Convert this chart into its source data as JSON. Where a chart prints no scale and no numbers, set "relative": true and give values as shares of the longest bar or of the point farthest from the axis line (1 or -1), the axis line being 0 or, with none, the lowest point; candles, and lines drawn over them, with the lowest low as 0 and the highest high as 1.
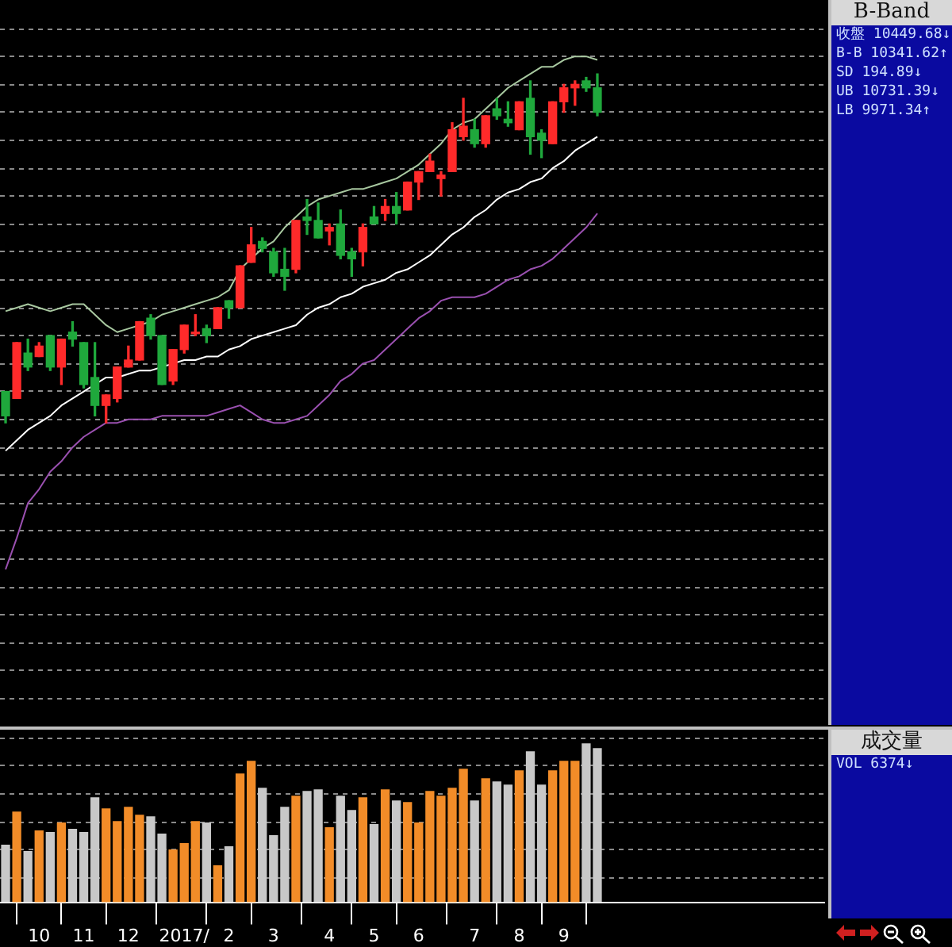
{
  "chart_data": [
    {
      "type": "candlestick",
      "relative": true,
      "grid": "y",
      "annotations": [
        "B-Band",
        "收盤 10449.68↓",
        "B-B 10341.62↑",
        "SD 194.89↓",
        "UB 10731.39↓",
        "LB 9971.34↑"
      ],
      "ohlc": [
        [
          0.09,
          0.09,
          0,
          0.02
        ],
        [
          0.07,
          0.23,
          0.07,
          0.23
        ],
        [
          0.2,
          0.24,
          0.15,
          0.16
        ],
        [
          0.19,
          0.23,
          0.19,
          0.22
        ],
        [
          0.25,
          0.25,
          0.15,
          0.16
        ],
        [
          0.16,
          0.24,
          0.11,
          0.24
        ],
        [
          0.26,
          0.29,
          0.22,
          0.24
        ],
        [
          0.23,
          0.23,
          0.1,
          0.11
        ],
        [
          0.13,
          0.23,
          0.02,
          0.05
        ],
        [
          0.05,
          0.08,
          0,
          0.08
        ],
        [
          0.07,
          0.16,
          0.06,
          0.16
        ],
        [
          0.16,
          0.22,
          0.16,
          0.18
        ],
        [
          0.18,
          0.29,
          0.18,
          0.29
        ],
        [
          0.3,
          0.31,
          0.24,
          0.25
        ],
        [
          0.25,
          0.25,
          0.11,
          0.11
        ],
        [
          0.12,
          0.21,
          0.11,
          0.21
        ],
        [
          0.21,
          0.28,
          0.2,
          0.28
        ],
        [
          0.26,
          0.31,
          0.25,
          0.26
        ],
        [
          0.27,
          0.28,
          0.23,
          0.25
        ],
        [
          0.27,
          0.33,
          0.27,
          0.33
        ],
        [
          0.35,
          0.35,
          0.3,
          0.33
        ],
        [
          0.33,
          0.45,
          0.33,
          0.45
        ],
        [
          0.46,
          0.56,
          0.46,
          0.51
        ],
        [
          0.52,
          0.53,
          0.49,
          0.5
        ],
        [
          0.49,
          0.5,
          0.42,
          0.43
        ],
        [
          0.44,
          0.5,
          0.38,
          0.42
        ],
        [
          0.44,
          0.58,
          0.43,
          0.58
        ],
        [
          0.59,
          0.64,
          0.54,
          0.58
        ],
        [
          0.58,
          0.63,
          0.53,
          0.53
        ],
        [
          0.55,
          0.57,
          0.51,
          0.56
        ],
        [
          0.57,
          0.61,
          0.47,
          0.48
        ],
        [
          0.49,
          0.5,
          0.42,
          0.47
        ],
        [
          0.49,
          0.57,
          0.45,
          0.56
        ],
        [
          0.59,
          0.62,
          0.57,
          0.57
        ],
        [
          0.6,
          0.64,
          0.58,
          0.62
        ],
        [
          0.62,
          0.66,
          0.57,
          0.6
        ],
        [
          0.61,
          0.69,
          0.61,
          0.69
        ],
        [
          0.69,
          0.72,
          0.64,
          0.72
        ],
        [
          0.72,
          0.77,
          0.72,
          0.75
        ],
        [
          0.7,
          0.72,
          0.65,
          0.71
        ],
        [
          0.72,
          0.86,
          0.72,
          0.84
        ],
        [
          0.82,
          0.93,
          0.81,
          0.85
        ],
        [
          0.84,
          0.87,
          0.79,
          0.8
        ],
        [
          0.8,
          0.88,
          0.79,
          0.88
        ],
        [
          0.9,
          0.93,
          0.87,
          0.88
        ],
        [
          0.87,
          0.92,
          0.85,
          0.86
        ],
        [
          0.84,
          0.92,
          0.84,
          0.92
        ],
        [
          0.93,
          0.98,
          0.77,
          0.82
        ],
        [
          0.83,
          0.84,
          0.76,
          0.81
        ],
        [
          0.8,
          0.92,
          0.8,
          0.92
        ],
        [
          0.92,
          0.97,
          0.89,
          0.96
        ],
        [
          0.96,
          0.98,
          0.91,
          0.97
        ],
        [
          0.98,
          0.99,
          0.95,
          0.96
        ],
        [
          0.96,
          1,
          0.88,
          0.89
        ]
      ],
      "colors": [
        "#1fa83c",
        "#ff2a2a",
        "#1fa83c",
        "#ff2a2a",
        "#1fa83c",
        "#ff2a2a",
        "#1fa83c",
        "#1fa83c",
        "#1fa83c",
        "#ff2a2a",
        "#ff2a2a",
        "#ff2a2a",
        "#ff2a2a",
        "#1fa83c",
        "#1fa83c",
        "#ff2a2a",
        "#ff2a2a",
        "#ff2a2a",
        "#1fa83c",
        "#ff2a2a",
        "#1fa83c",
        "#ff2a2a",
        "#ff2a2a",
        "#1fa83c",
        "#1fa83c",
        "#1fa83c",
        "#ff2a2a",
        "#1fa83c",
        "#1fa83c",
        "#ff2a2a",
        "#1fa83c",
        "#1fa83c",
        "#ff2a2a",
        "#1fa83c",
        "#ff2a2a",
        "#1fa83c",
        "#ff2a2a",
        "#ff2a2a",
        "#ff2a2a",
        "#ff2a2a",
        "#ff2a2a",
        "#ff2a2a",
        "#1fa83c",
        "#ff2a2a",
        "#1fa83c",
        "#1fa83c",
        "#ff2a2a",
        "#1fa83c",
        "#1fa83c",
        "#ff2a2a",
        "#ff2a2a",
        "#ff2a2a",
        "#1fa83c",
        "#1fa83c"
      ],
      "series": [
        {
          "type": "line",
          "color": "#a8c8a0",
          "values": [
            0.32,
            0.33,
            0.34,
            0.33,
            0.32,
            0.33,
            0.34,
            0.34,
            0.31,
            0.28,
            0.26,
            0.27,
            0.28,
            0.29,
            0.31,
            0.32,
            0.33,
            0.34,
            0.35,
            0.36,
            0.38,
            0.44,
            0.47,
            0.5,
            0.52,
            0.56,
            0.59,
            0.62,
            0.64,
            0.65,
            0.66,
            0.67,
            0.67,
            0.68,
            0.69,
            0.7,
            0.72,
            0.74,
            0.77,
            0.8,
            0.84,
            0.86,
            0.87,
            0.9,
            0.93,
            0.96,
            0.98,
            1.0,
            1.02,
            1.02,
            1.04,
            1.05,
            1.05,
            1.04
          ]
        },
        {
          "type": "line",
          "color": "#ffffff",
          "values": [
            -0.08,
            -0.05,
            -0.02,
            0.0,
            0.02,
            0.05,
            0.07,
            0.09,
            0.11,
            0.13,
            0.13,
            0.14,
            0.15,
            0.15,
            0.16,
            0.17,
            0.18,
            0.18,
            0.19,
            0.19,
            0.21,
            0.22,
            0.24,
            0.25,
            0.26,
            0.27,
            0.28,
            0.31,
            0.33,
            0.34,
            0.36,
            0.37,
            0.39,
            0.4,
            0.41,
            0.43,
            0.44,
            0.46,
            0.48,
            0.51,
            0.54,
            0.56,
            0.59,
            0.61,
            0.64,
            0.66,
            0.67,
            0.69,
            0.7,
            0.73,
            0.75,
            0.78,
            0.8,
            0.82
          ]
        },
        {
          "type": "line",
          "color": "#9a50b0",
          "values": [
            -0.42,
            -0.33,
            -0.23,
            -0.19,
            -0.14,
            -0.11,
            -0.07,
            -0.04,
            -0.02,
            0.0,
            0.0,
            0.01,
            0.01,
            0.01,
            0.02,
            0.02,
            0.02,
            0.02,
            0.02,
            0.03,
            0.04,
            0.05,
            0.03,
            0.01,
            0.0,
            0.0,
            0.01,
            0.02,
            0.05,
            0.08,
            0.12,
            0.14,
            0.17,
            0.18,
            0.21,
            0.24,
            0.27,
            0.3,
            0.32,
            0.35,
            0.36,
            0.36,
            0.36,
            0.37,
            0.39,
            0.41,
            0.42,
            0.44,
            0.45,
            0.47,
            0.5,
            0.53,
            0.56,
            0.6
          ]
        }
      ]
    },
    {
      "type": "bar",
      "relative": true,
      "grid": "y",
      "tick_labels": "x",
      "annotations": [
        "成交量",
        "VOL 6374↓"
      ],
      "categories": [
        null,
        null,
        null,
        "10",
        null,
        null,
        null,
        "11",
        null,
        null,
        null,
        "12",
        null,
        null,
        null,
        null,
        "2017/",
        null,
        null,
        null,
        "2",
        null,
        null,
        null,
        "3",
        null,
        null,
        null,
        null,
        "4",
        null,
        null,
        null,
        "5",
        null,
        null,
        null,
        "6",
        null,
        null,
        null,
        null,
        "7",
        null,
        null,
        null,
        "8",
        null,
        null,
        null,
        "9",
        null,
        null,
        null
      ],
      "values": [
        0.36,
        0.57,
        0.32,
        0.45,
        0.44,
        0.5,
        0.46,
        0.44,
        0.66,
        0.59,
        0.51,
        0.6,
        0.55,
        0.54,
        0.43,
        0.33,
        0.37,
        0.51,
        0.5,
        0.23,
        0.35,
        0.81,
        0.89,
        0.72,
        0.42,
        0.6,
        0.67,
        0.7,
        0.71,
        0.47,
        0.67,
        0.58,
        0.66,
        0.49,
        0.71,
        0.64,
        0.63,
        0.5,
        0.7,
        0.67,
        0.72,
        0.84,
        0.64,
        0.78,
        0.76,
        0.74,
        0.83,
        0.95,
        0.74,
        0.83,
        0.89,
        0.89,
        1,
        0.97
      ],
      "colors": [
        "#c8c8c8",
        "#f28c28",
        "#c8c8c8",
        "#f28c28",
        "#c8c8c8",
        "#f28c28",
        "#c8c8c8",
        "#c8c8c8",
        "#c8c8c8",
        "#f28c28",
        "#f28c28",
        "#f28c28",
        "#f28c28",
        "#c8c8c8",
        "#c8c8c8",
        "#f28c28",
        "#f28c28",
        "#f28c28",
        "#c8c8c8",
        "#f28c28",
        "#c8c8c8",
        "#f28c28",
        "#f28c28",
        "#c8c8c8",
        "#c8c8c8",
        "#c8c8c8",
        "#f28c28",
        "#c8c8c8",
        "#c8c8c8",
        "#f28c28",
        "#c8c8c8",
        "#c8c8c8",
        "#f28c28",
        "#c8c8c8",
        "#f28c28",
        "#c8c8c8",
        "#f28c28",
        "#f28c28",
        "#f28c28",
        "#f28c28",
        "#f28c28",
        "#f28c28",
        "#c8c8c8",
        "#f28c28",
        "#c8c8c8",
        "#c8c8c8",
        "#f28c28",
        "#c8c8c8",
        "#c8c8c8",
        "#f28c28",
        "#f28c28",
        "#f28c28",
        "#c8c8c8",
        "#c8c8c8"
      ]
    }
  ]
}
